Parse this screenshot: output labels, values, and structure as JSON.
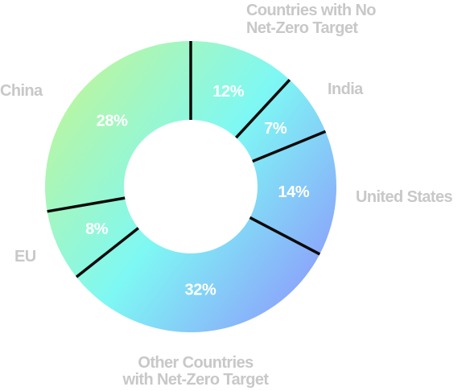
{
  "chart_data": {
    "type": "pie",
    "variant": "donut",
    "title": "",
    "categories": [
      "Countries with No Net-Zero Target",
      "India",
      "United States",
      "Other Countries with Net-Zero Target",
      "EU",
      "China"
    ],
    "values": [
      12,
      7,
      14,
      32,
      8,
      28
    ],
    "value_labels": [
      "12%",
      "7%",
      "14%",
      "32%",
      "8%",
      "28%"
    ],
    "unit": "%",
    "legend": "none",
    "colors": {
      "gradient_start": "#c8f58e",
      "gradient_mid": "#7ef8f4",
      "gradient_end": "#8c9ffb",
      "separator": "#0a0a0a",
      "value_label": "#ffffff",
      "category_label": "#c8c8c8"
    }
  }
}
